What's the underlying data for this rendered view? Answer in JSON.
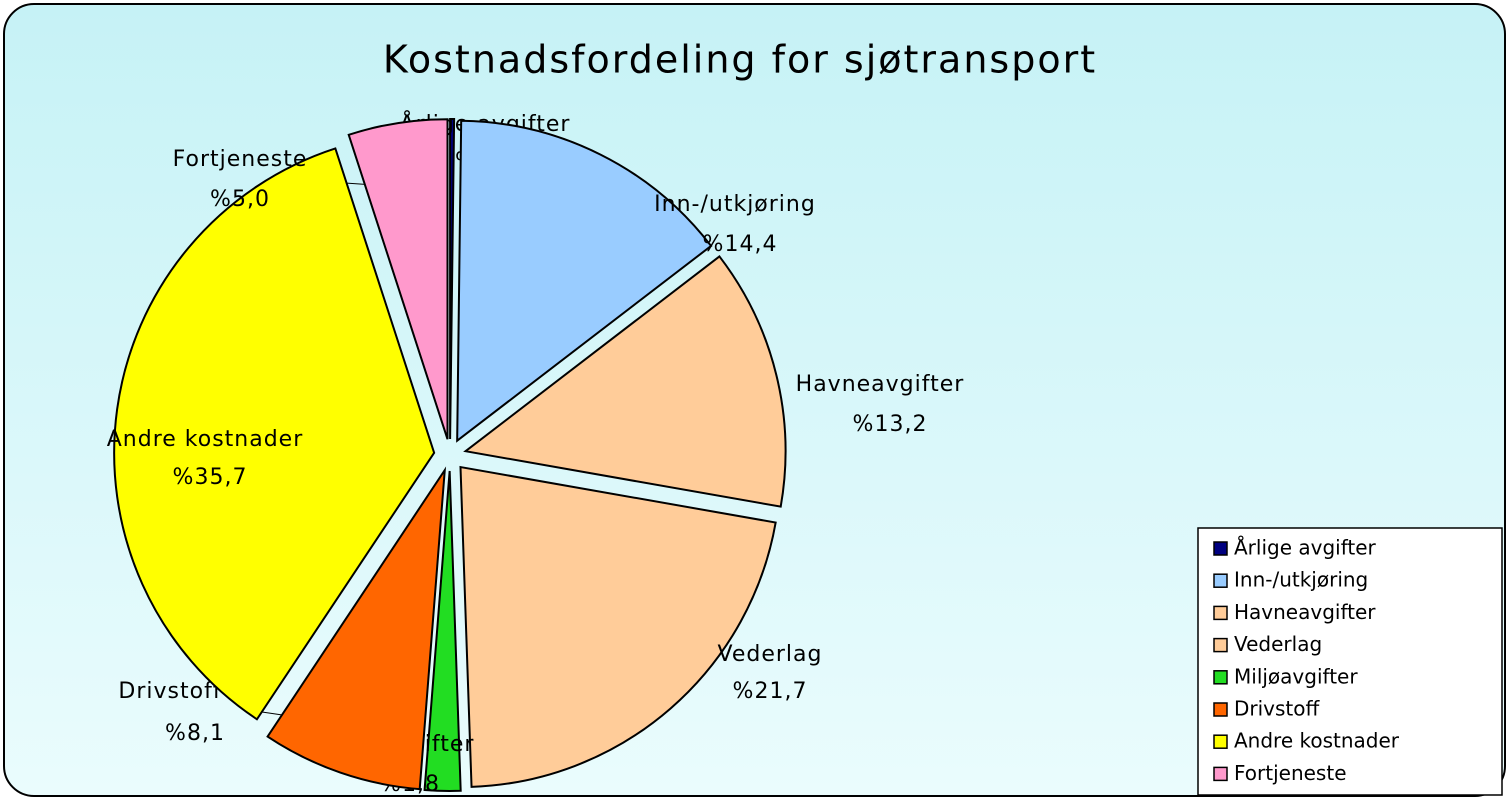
{
  "chart_data": {
    "type": "pie",
    "title": "Kostnadsfordeling for sjøtransport",
    "categories": [
      "Årlige avgifter",
      "Inn-/utkjøring",
      "Havneavgifter",
      "Vederlag",
      "Miljøavgifter",
      "Drivstoff",
      "Andre kostnader",
      "Fortjeneste"
    ],
    "values": [
      0.2,
      14.4,
      13.2,
      21.7,
      1.8,
      8.1,
      35.7,
      5.0
    ],
    "value_labels": [
      "%0,2",
      "%14,4",
      "%13,2",
      "%21,7",
      "%1,8",
      "%8,1",
      "%35,7",
      "%5,0"
    ],
    "colors": [
      "#000080",
      "#99ccff",
      "#ffcc99",
      "#ffcc99",
      "#22dd22",
      "#ff6600",
      "#ffff00",
      "#ff99cc"
    ],
    "legend": "bottom-right"
  }
}
